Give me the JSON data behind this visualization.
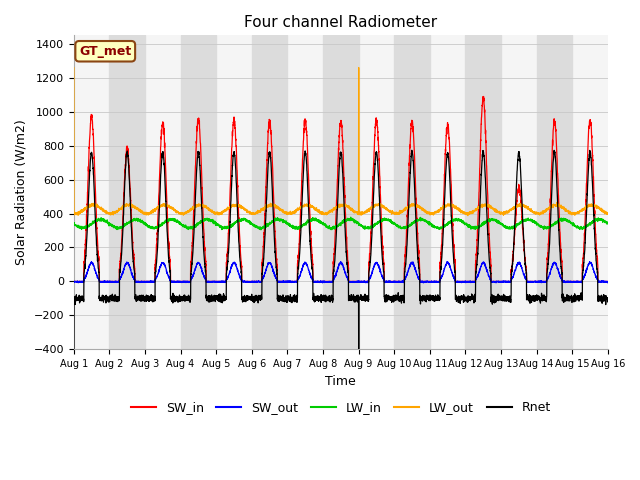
{
  "title": "Four channel Radiometer",
  "xlabel": "Time",
  "ylabel": "Solar Radiation (W/m2)",
  "ylim": [
    -400,
    1450
  ],
  "yticks": [
    -400,
    -200,
    0,
    200,
    400,
    600,
    800,
    1000,
    1200,
    1400
  ],
  "n_days": 15,
  "points_per_day": 288,
  "colors": {
    "SW_in": "#FF0000",
    "SW_out": "#0000FF",
    "LW_in": "#00CC00",
    "LW_out": "#FFA500",
    "Rnet": "#000000"
  },
  "legend_label": "GT_met",
  "legend_box_facecolor": "#FFFFC0",
  "legend_box_edgecolor": "#8B4513",
  "bg_band_color": "#DCDCDC",
  "grid_color": "#C8C8C8",
  "sw_in_peaks": [
    970,
    780,
    930,
    960,
    950,
    945,
    950,
    940,
    950,
    940,
    920,
    1080,
    560,
    940,
    950
  ],
  "lw_out_spike_days": [
    0,
    8
  ],
  "lw_out_spike_value": 1260,
  "vertical_line_days": [
    0,
    8
  ]
}
